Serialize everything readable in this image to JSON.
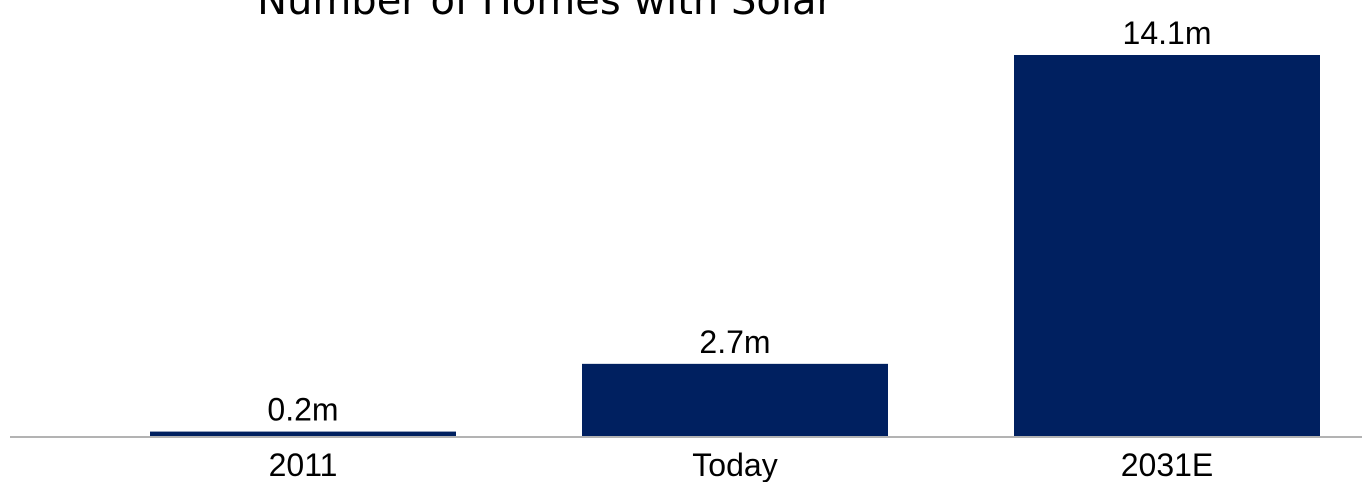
{
  "chart_data": {
    "type": "bar",
    "title": "Number of Homes with Solar",
    "categories": [
      "2011",
      "Today",
      "2031E"
    ],
    "values": [
      0.2,
      2.7,
      14.1
    ],
    "value_labels": [
      "0.2m",
      "2.7m",
      "14.1m"
    ],
    "bar_color": "#002060",
    "axis_color": "#b3b3b3",
    "xlabel": "",
    "ylabel": "",
    "grid": false,
    "legend": "none"
  }
}
